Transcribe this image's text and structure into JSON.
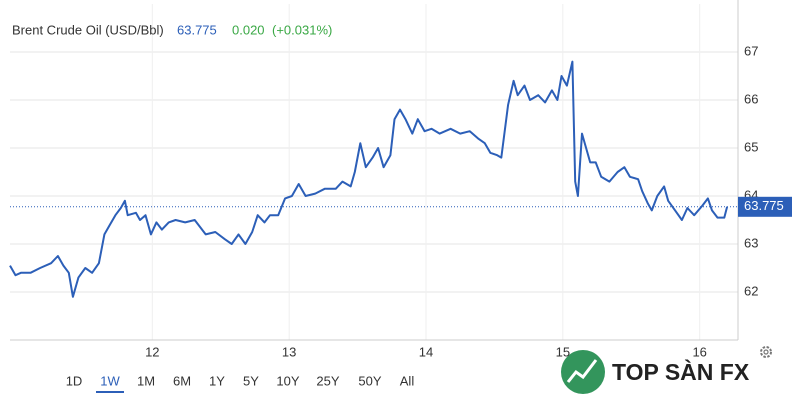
{
  "chart_data": {
    "type": "line",
    "title": "Brent Crude Oil (USD/Bbl)",
    "last_price": 63.775,
    "change": "0.020",
    "change_pct": "(+0.031%)",
    "color": "#2c5fb8",
    "x": [
      10.96,
      11.0,
      11.04,
      11.11,
      11.18,
      11.26,
      11.31,
      11.35,
      11.39,
      11.42,
      11.46,
      11.51,
      11.56,
      11.61,
      11.65,
      11.69,
      11.73,
      11.77,
      11.8,
      11.82,
      11.88,
      11.91,
      11.95,
      11.99,
      12.03,
      12.07,
      12.12,
      12.17,
      12.24,
      12.31,
      12.39,
      12.46,
      12.53,
      12.58,
      12.63,
      12.68,
      12.73,
      12.77,
      12.82,
      12.86,
      12.92,
      12.97,
      13.02,
      13.07,
      13.12,
      13.19,
      13.26,
      13.34,
      13.39,
      13.45,
      13.48,
      13.52,
      13.56,
      13.61,
      13.65,
      13.69,
      13.74,
      13.77,
      13.81,
      13.85,
      13.9,
      13.94,
      13.99,
      14.04,
      14.1,
      14.18,
      14.25,
      14.32,
      14.38,
      14.43,
      14.47,
      14.52,
      14.55,
      14.6,
      14.64,
      14.67,
      14.72,
      14.76,
      14.82,
      14.87,
      14.92,
      14.96,
      14.99,
      15.03,
      15.07,
      15.09,
      15.11,
      15.14,
      15.17,
      15.2,
      15.24,
      15.28,
      15.34,
      15.4,
      15.45,
      15.49,
      15.55,
      15.58,
      15.62,
      15.65,
      15.69,
      15.74,
      15.77,
      15.82,
      15.87,
      15.91,
      15.96,
      16.02,
      16.06,
      16.09,
      16.13,
      16.18,
      16.2
    ],
    "values": [
      62.55,
      62.35,
      62.4,
      62.4,
      62.5,
      62.6,
      62.75,
      62.55,
      62.4,
      61.9,
      62.3,
      62.5,
      62.4,
      62.6,
      63.2,
      63.4,
      63.6,
      63.75,
      63.9,
      63.6,
      63.65,
      63.5,
      63.6,
      63.2,
      63.45,
      63.3,
      63.45,
      63.5,
      63.45,
      63.5,
      63.2,
      63.25,
      63.1,
      63.0,
      63.2,
      63.0,
      63.25,
      63.6,
      63.45,
      63.6,
      63.6,
      63.95,
      64.0,
      64.25,
      64.0,
      64.05,
      64.15,
      64.15,
      64.3,
      64.2,
      64.5,
      65.1,
      64.6,
      64.8,
      65.0,
      64.6,
      64.85,
      65.6,
      65.8,
      65.6,
      65.3,
      65.6,
      65.35,
      65.4,
      65.3,
      65.4,
      65.3,
      65.35,
      65.2,
      65.1,
      64.9,
      64.85,
      64.8,
      65.9,
      66.4,
      66.1,
      66.3,
      66.0,
      66.1,
      65.95,
      66.2,
      66.0,
      66.5,
      66.3,
      66.8,
      64.3,
      64.0,
      65.3,
      65.0,
      64.7,
      64.7,
      64.4,
      64.3,
      64.5,
      64.6,
      64.4,
      64.35,
      64.1,
      63.85,
      63.7,
      64.0,
      64.2,
      63.9,
      63.7,
      63.5,
      63.75,
      63.6,
      63.8,
      63.95,
      63.7,
      63.55,
      63.55,
      63.775
    ],
    "xlim": [
      10.96,
      16.28
    ],
    "xticks": [
      12,
      13,
      14,
      15,
      16
    ],
    "ylim": [
      61,
      68
    ],
    "yticks": [
      62,
      63,
      64,
      65,
      66,
      67
    ],
    "grid": true
  },
  "range_buttons": [
    "1D",
    "1W",
    "1M",
    "6M",
    "1Y",
    "5Y",
    "10Y",
    "25Y",
    "50Y",
    "All"
  ],
  "selected_range": 1,
  "watermark": "TOP SÀN FX"
}
